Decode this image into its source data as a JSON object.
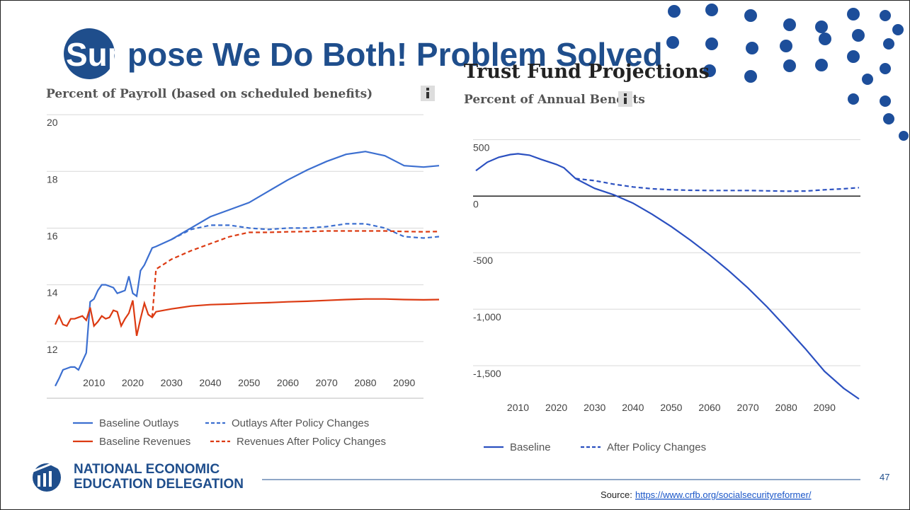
{
  "slide": {
    "title_highlight": "Sup",
    "title_rest": "pose We Do Both!  Problem Solved",
    "logo_line1": "NATIONAL ECONOMIC",
    "logo_line2": "EDUCATION DELEGATION",
    "page_number": "47",
    "source_label": "Source:",
    "source_url": "https://www.crfb.org/socialsecurityreformer/"
  },
  "chart_data": [
    {
      "type": "line",
      "title": "Percent of Payroll (based on scheduled benefits)",
      "x": [
        2000,
        2001,
        2002,
        2003,
        2004,
        2005,
        2006,
        2007,
        2008,
        2009,
        2010,
        2011,
        2012,
        2013,
        2014,
        2015,
        2016,
        2017,
        2018,
        2019,
        2020,
        2021,
        2022,
        2023,
        2024,
        2025,
        2026,
        2030,
        2035,
        2040,
        2045,
        2050,
        2055,
        2060,
        2065,
        2070,
        2075,
        2080,
        2085,
        2090,
        2095,
        2099
      ],
      "xlim": [
        2000,
        2099
      ],
      "xticks": [
        2010,
        2020,
        2030,
        2040,
        2050,
        2060,
        2070,
        2080,
        2090
      ],
      "ylim": [
        10,
        20.8
      ],
      "yticks": [
        12,
        14,
        16,
        18,
        20
      ],
      "grid": true,
      "series": [
        {
          "name": "Baseline Outlays",
          "color": "#3c6fd0",
          "style": "solid",
          "values": [
            10.43,
            10.7,
            11.0,
            11.05,
            11.1,
            11.1,
            11.0,
            11.3,
            11.6,
            13.4,
            13.5,
            13.8,
            14.0,
            14.0,
            13.95,
            13.9,
            13.7,
            13.75,
            13.8,
            14.3,
            13.7,
            13.6,
            14.5,
            14.7,
            15.0,
            15.3,
            15.35,
            15.6,
            16.0,
            16.4,
            16.65,
            16.9,
            17.3,
            17.7,
            18.05,
            18.35,
            18.6,
            18.7,
            18.55,
            18.2,
            18.15,
            18.2
          ]
        },
        {
          "name": "Baseline Revenues",
          "color": "#dc3a12",
          "style": "solid",
          "values": [
            12.6,
            12.9,
            12.6,
            12.55,
            12.8,
            12.8,
            12.85,
            12.9,
            12.75,
            13.2,
            12.55,
            12.7,
            12.9,
            12.8,
            12.85,
            13.1,
            13.05,
            12.55,
            12.8,
            13.0,
            13.45,
            12.2,
            12.8,
            13.35,
            12.95,
            12.85,
            13.05,
            13.15,
            13.25,
            13.3,
            13.32,
            13.35,
            13.37,
            13.4,
            13.42,
            13.45,
            13.48,
            13.5,
            13.5,
            13.48,
            13.47,
            13.48
          ]
        },
        {
          "name": "Outlays After Policy Changes",
          "color": "#3c6fd0",
          "style": "dashed",
          "values": [
            null,
            null,
            null,
            null,
            null,
            null,
            null,
            null,
            null,
            null,
            null,
            null,
            null,
            null,
            null,
            null,
            null,
            null,
            null,
            null,
            null,
            null,
            null,
            null,
            null,
            null,
            null,
            15.6,
            15.95,
            16.1,
            16.1,
            16.0,
            15.95,
            16.0,
            16.0,
            16.05,
            16.15,
            16.15,
            16.0,
            15.7,
            15.65,
            15.7
          ]
        },
        {
          "name": "Revenues After Policy Changes",
          "color": "#dc3a12",
          "style": "dashed",
          "values": [
            null,
            null,
            null,
            null,
            null,
            null,
            null,
            null,
            null,
            null,
            null,
            null,
            null,
            null,
            null,
            null,
            null,
            null,
            null,
            null,
            null,
            null,
            null,
            null,
            null,
            12.85,
            14.55,
            14.9,
            15.2,
            15.45,
            15.7,
            15.85,
            15.85,
            15.87,
            15.88,
            15.9,
            15.9,
            15.9,
            15.9,
            15.88,
            15.87,
            15.88
          ]
        }
      ]
    },
    {
      "type": "line",
      "title": "Trust Fund Projections",
      "subtitle": "Percent of Annual Benefits",
      "x": [
        1999,
        2002,
        2005,
        2008,
        2010,
        2013,
        2016,
        2020,
        2022,
        2025,
        2030,
        2035,
        2040,
        2045,
        2050,
        2055,
        2060,
        2065,
        2070,
        2075,
        2080,
        2085,
        2090,
        2095,
        2099
      ],
      "xlim": [
        1999,
        2099
      ],
      "xticks": [
        2010,
        2020,
        2030,
        2040,
        2050,
        2060,
        2070,
        2080,
        2090
      ],
      "ylim": [
        -1800,
        640
      ],
      "yticks": [
        500,
        0,
        -500,
        {
          "value": -1000,
          "label": "-1,000"
        },
        {
          "value": -1500,
          "label": "-1,500"
        }
      ],
      "grid": true,
      "zero_line": true,
      "series": [
        {
          "name": "Baseline",
          "color": "#2b50c0",
          "style": "solid",
          "values": [
            225,
            300,
            344,
            368,
            375,
            362,
            325,
            281,
            250,
            156,
            69,
            12,
            -62,
            -160,
            -269,
            -390,
            -519,
            -660,
            -812,
            -980,
            -1162,
            -1350,
            -1550,
            -1700,
            -1794
          ]
        },
        {
          "name": "After Policy Changes",
          "color": "#2b50c0",
          "style": "dashed",
          "values": [
            null,
            null,
            null,
            null,
            null,
            null,
            null,
            null,
            null,
            156,
            137,
            106,
            81,
            65,
            56,
            52,
            50,
            50,
            50,
            47,
            44,
            45,
            56,
            65,
            75
          ]
        }
      ]
    }
  ]
}
